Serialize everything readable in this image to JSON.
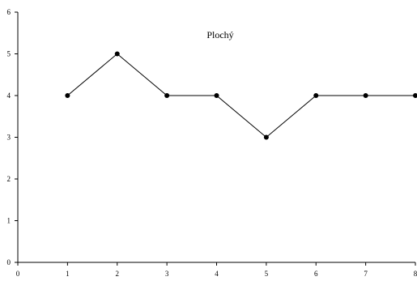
{
  "chart_data": {
    "type": "line",
    "title": "Plochý",
    "xlabel": "",
    "ylabel": "",
    "xlim": [
      0,
      8
    ],
    "ylim": [
      0,
      6
    ],
    "x_ticks": [
      "0",
      "1",
      "2",
      "3",
      "4",
      "5",
      "6",
      "7",
      "8"
    ],
    "y_ticks": [
      "0",
      "1",
      "2",
      "3",
      "4",
      "5",
      "6"
    ],
    "grid": false,
    "series": [
      {
        "x": [
          1,
          2,
          3,
          4,
          5,
          6,
          7,
          8
        ],
        "y": [
          4,
          5,
          4,
          4,
          3,
          4,
          4,
          4
        ]
      }
    ],
    "colors": {
      "line": "#000000",
      "marker": "#000000",
      "axis": "#000000"
    }
  }
}
